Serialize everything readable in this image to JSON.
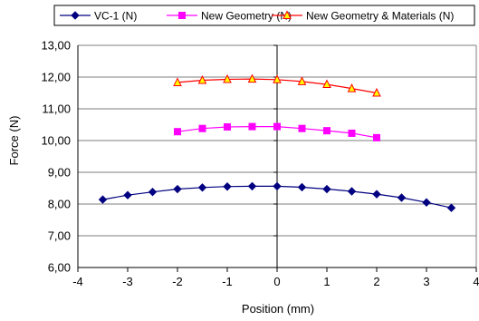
{
  "chart_data": {
    "type": "line",
    "title": "",
    "xlabel": "Position (mm)",
    "ylabel": "Force (N)",
    "xlim": [
      -4,
      4
    ],
    "ylim": [
      6,
      13
    ],
    "x_ticks": [
      -4,
      -3,
      -2,
      -1,
      0,
      1,
      2,
      3,
      4
    ],
    "x_tick_labels": [
      "-4",
      "-3",
      "-2",
      "-1",
      "0",
      "1",
      "2",
      "3",
      "4"
    ],
    "y_ticks": [
      6,
      7,
      8,
      9,
      10,
      11,
      12,
      13
    ],
    "y_tick_labels": [
      "6,00",
      "7,00",
      "8,00",
      "9,00",
      "10,00",
      "11,00",
      "12,00",
      "13,00"
    ],
    "grid": "horizontal",
    "legend_position": "top",
    "series": [
      {
        "name": "VC-1 (N)",
        "color": "#000080",
        "marker": "diamond",
        "x": [
          -3.5,
          -3,
          -2.5,
          -2,
          -1.5,
          -1,
          -0.5,
          0,
          0.5,
          1,
          1.5,
          2,
          2.5,
          3,
          3.5
        ],
        "y": [
          8.14,
          8.28,
          8.38,
          8.47,
          8.52,
          8.55,
          8.56,
          8.56,
          8.53,
          8.47,
          8.4,
          8.31,
          8.2,
          8.05,
          7.88
        ]
      },
      {
        "name": "New Geometry (N)",
        "color": "#FF00FF",
        "marker": "square",
        "x": [
          -2,
          -1.5,
          -1,
          -0.5,
          0,
          0.5,
          1,
          1.5,
          2
        ],
        "y": [
          10.28,
          10.38,
          10.43,
          10.44,
          10.44,
          10.38,
          10.31,
          10.23,
          10.09
        ]
      },
      {
        "name": "New Geometry & Materials (N)",
        "color": "#FF0000",
        "marker": "triangle",
        "marker_fill": "#FFFF00",
        "x": [
          -2,
          -1.5,
          -1,
          -0.5,
          0,
          0.5,
          1,
          1.5,
          2
        ],
        "y": [
          11.83,
          11.9,
          11.93,
          11.94,
          11.92,
          11.86,
          11.77,
          11.64,
          11.5
        ]
      }
    ]
  }
}
